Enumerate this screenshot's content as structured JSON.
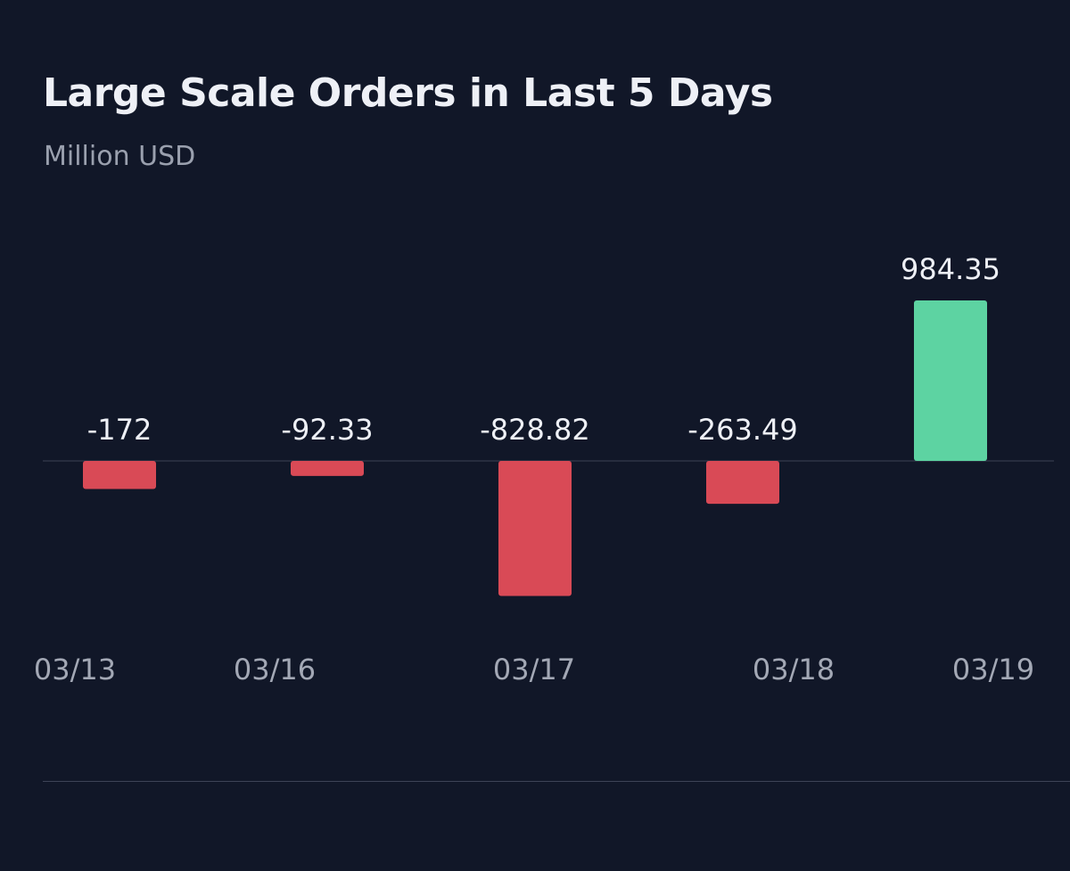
{
  "title": "Large Scale Orders in Last 5 Days",
  "subtitle": "Million USD",
  "colors": {
    "background": "#111728",
    "positive": "#5dd3a2",
    "negative": "#d94a56",
    "label": "#eef0f6",
    "tick": "#a3a8b5",
    "baseline": "#3a4053"
  },
  "chart_data": {
    "type": "bar",
    "title": "Large Scale Orders in Last 5 Days",
    "subtitle": "Million USD",
    "xlabel": "",
    "ylabel": "",
    "grid": false,
    "categories": [
      "03/13",
      "03/16",
      "03/17",
      "03/18",
      "03/19"
    ],
    "values": [
      -172,
      -92.33,
      -828.82,
      -263.49,
      984.35
    ],
    "value_labels": [
      "-172",
      "-92.33",
      "-828.82",
      "-263.49",
      "984.35"
    ],
    "ylim": [
      -1000,
      1200
    ]
  }
}
